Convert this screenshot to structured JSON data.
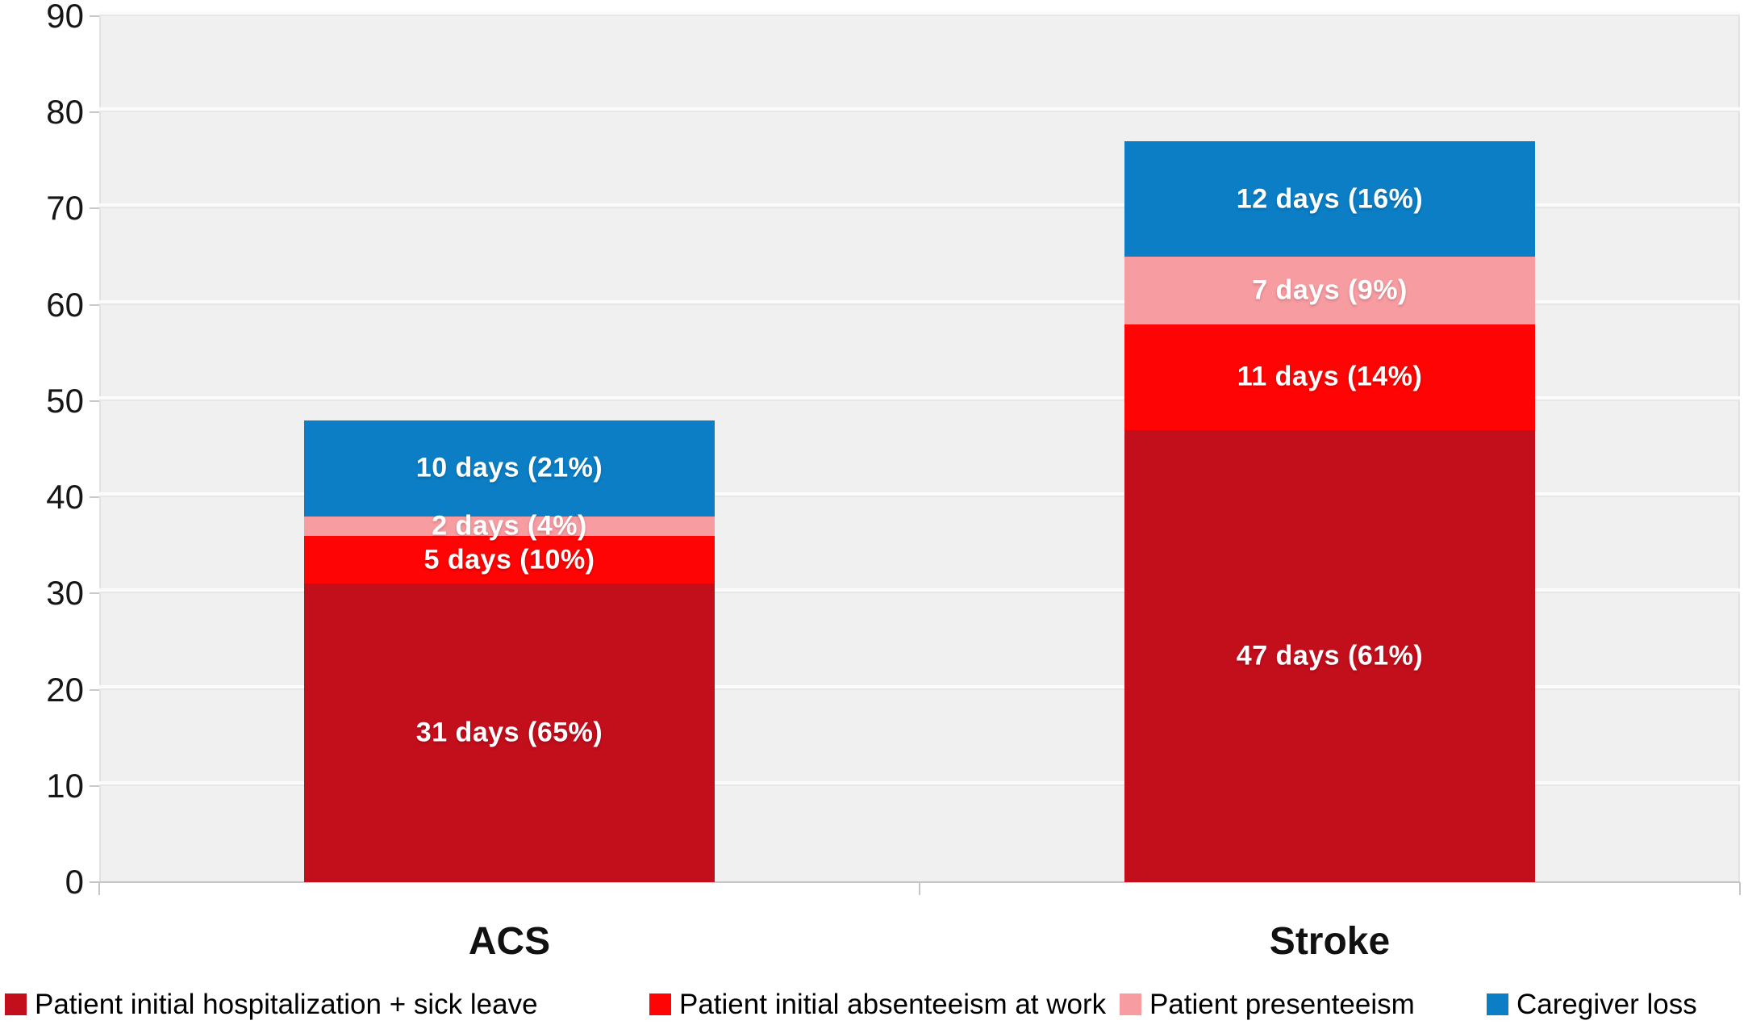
{
  "chart_data": {
    "type": "bar",
    "stacked": true,
    "title": "",
    "xlabel": "",
    "ylabel": "",
    "categories": [
      "ACS",
      "Stroke"
    ],
    "series": [
      {
        "name": "Patient initial hospitalization + sick leave",
        "color": "#c30e1c",
        "values": [
          31,
          47
        ],
        "data_labels": [
          "31 days (65%)",
          "47 days (61%)"
        ]
      },
      {
        "name": "Patient initial absenteeism at work",
        "color": "#fe0404",
        "values": [
          5,
          11
        ],
        "data_labels": [
          "5 days (10%)",
          "11 days (14%)"
        ]
      },
      {
        "name": "Patient presenteeism",
        "color": "#f79ca1",
        "values": [
          2,
          7
        ],
        "data_labels": [
          "2 days (4%)",
          "7 days (9%)"
        ]
      },
      {
        "name": "Caregiver loss",
        "color": "#0b7ec5",
        "values": [
          10,
          12
        ],
        "data_labels": [
          "10 days (21%)",
          "12 days (16%)"
        ]
      }
    ],
    "ylim": [
      0,
      90
    ],
    "yticks": [
      0,
      10,
      20,
      30,
      40,
      50,
      60,
      70,
      80,
      90
    ],
    "grid": true,
    "legend_position": "bottom",
    "plot_background": "#f0f0f0",
    "data_label_color": "#ffffff"
  }
}
